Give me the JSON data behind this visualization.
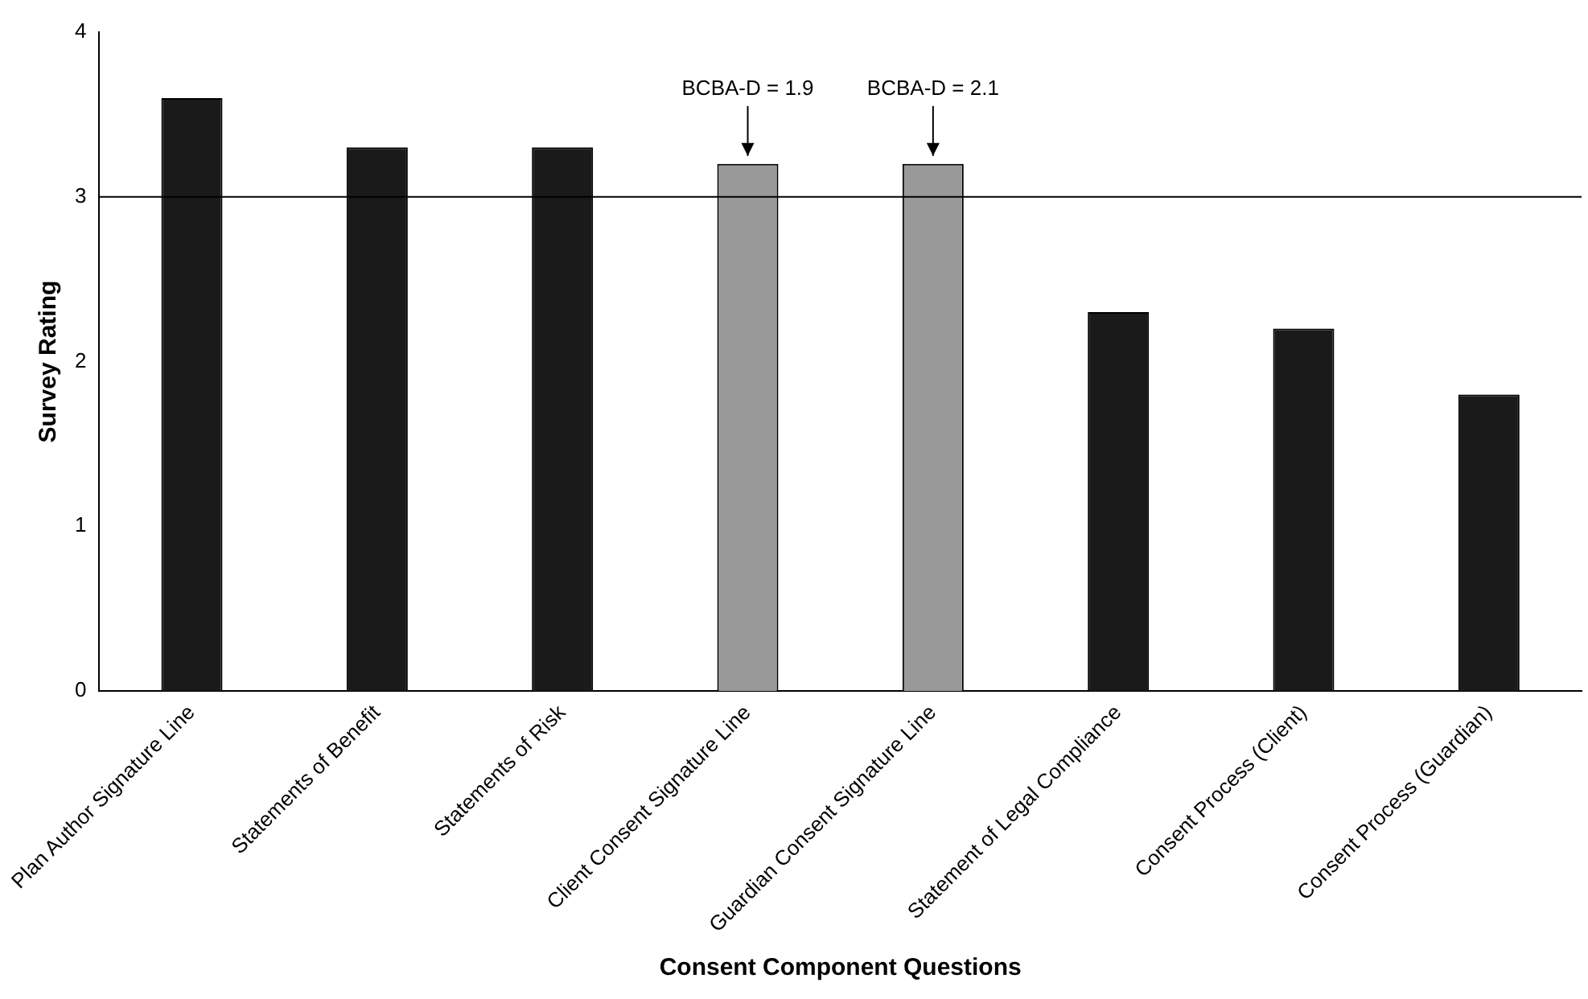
{
  "chart_data": {
    "type": "bar",
    "xlabel": "Consent Component Questions",
    "ylabel": "Survey Rating",
    "categories": [
      "Plan Author Signature Line",
      "Statements of Benefit",
      "Statements of Risk",
      "Client Consent Signature Line",
      "Guardian Consent Signature Line",
      "Statement of Legal Compliance",
      "Consent Process (Client)",
      "Consent Process (Guardian)"
    ],
    "values": [
      3.6,
      3.3,
      3.3,
      3.2,
      3.2,
      2.3,
      2.2,
      1.8
    ],
    "colors": [
      "#1a1a1a",
      "#1a1a1a",
      "#1a1a1a",
      "#999999",
      "#999999",
      "#1a1a1a",
      "#1a1a1a",
      "#1a1a1a"
    ],
    "ylim": [
      0,
      4
    ],
    "yticks": [
      0,
      1,
      2,
      3,
      4
    ],
    "grid": false,
    "legend": false,
    "ref_lines": [
      {
        "axis": "y",
        "value": 3,
        "color": "#000000"
      }
    ],
    "annotations": [
      {
        "text": "BCBA-D = 1.9",
        "x": "Client Consent Signature Line",
        "y": 3.2
      },
      {
        "text": "BCBA-D = 2.1",
        "x": "Guardian Consent Signature Line",
        "y": 3.2
      }
    ]
  }
}
